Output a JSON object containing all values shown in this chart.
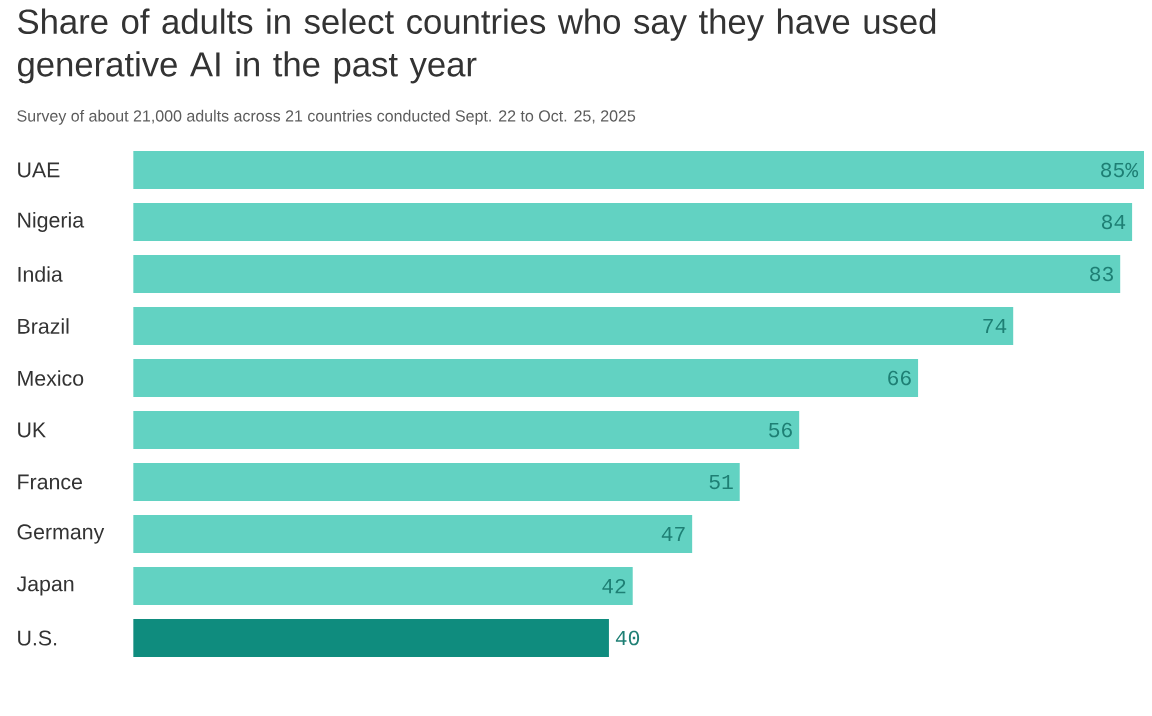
{
  "chart_data": {
    "type": "bar",
    "orientation": "horizontal",
    "title": "Share of adults in select countries who say they have used generative AI in the past year",
    "subtitle": "Survey of about 21,000 adults across 21 countries conducted Sept. 22 to Oct. 25, 2025",
    "categories": [
      "UAE",
      "Nigeria",
      "India",
      "Brazil",
      "Mexico",
      "UK",
      "France",
      "Germany",
      "Japan",
      "U.S."
    ],
    "values": [
      85,
      84,
      83,
      74,
      66,
      56,
      51,
      47,
      42,
      40
    ],
    "value_labels": [
      "85%",
      "84",
      "83",
      "74",
      "66",
      "56",
      "51",
      "47",
      "42",
      "40"
    ],
    "colors": [
      "#62d2c2",
      "#62d2c2",
      "#62d2c2",
      "#62d2c2",
      "#62d2c2",
      "#62d2c2",
      "#62d2c2",
      "#62d2c2",
      "#62d2c2",
      "#0f8c7e"
    ]
  }
}
